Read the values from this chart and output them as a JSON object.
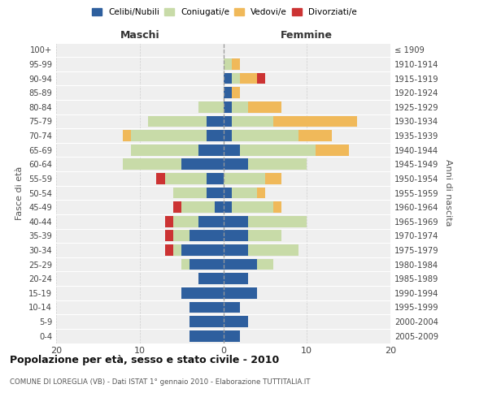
{
  "age_groups": [
    "0-4",
    "5-9",
    "10-14",
    "15-19",
    "20-24",
    "25-29",
    "30-34",
    "35-39",
    "40-44",
    "45-49",
    "50-54",
    "55-59",
    "60-64",
    "65-69",
    "70-74",
    "75-79",
    "80-84",
    "85-89",
    "90-94",
    "95-99",
    "100+"
  ],
  "birth_years": [
    "2005-2009",
    "2000-2004",
    "1995-1999",
    "1990-1994",
    "1985-1989",
    "1980-1984",
    "1975-1979",
    "1970-1974",
    "1965-1969",
    "1960-1964",
    "1955-1959",
    "1950-1954",
    "1945-1949",
    "1940-1944",
    "1935-1939",
    "1930-1934",
    "1925-1929",
    "1920-1924",
    "1915-1919",
    "1910-1914",
    "≤ 1909"
  ],
  "males_celibe": [
    4,
    4,
    4,
    5,
    3,
    4,
    5,
    4,
    3,
    1,
    2,
    2,
    5,
    3,
    2,
    2,
    0,
    0,
    0,
    0,
    0
  ],
  "males_coniugato": [
    0,
    0,
    0,
    0,
    0,
    1,
    1,
    2,
    3,
    4,
    4,
    5,
    7,
    8,
    9,
    7,
    3,
    0,
    0,
    0,
    0
  ],
  "males_vedovo": [
    0,
    0,
    0,
    0,
    0,
    0,
    0,
    0,
    0,
    0,
    0,
    0,
    0,
    0,
    1,
    0,
    0,
    0,
    0,
    0,
    0
  ],
  "males_divorziato": [
    0,
    0,
    0,
    0,
    0,
    0,
    1,
    1,
    1,
    1,
    0,
    1,
    0,
    0,
    0,
    0,
    0,
    0,
    0,
    0,
    0
  ],
  "females_nubile": [
    2,
    3,
    2,
    4,
    3,
    4,
    3,
    3,
    3,
    1,
    1,
    0,
    3,
    2,
    1,
    1,
    1,
    1,
    1,
    0,
    0
  ],
  "females_coniugata": [
    0,
    0,
    0,
    0,
    0,
    2,
    6,
    4,
    7,
    5,
    3,
    5,
    7,
    9,
    8,
    5,
    2,
    0,
    1,
    1,
    0
  ],
  "females_vedova": [
    0,
    0,
    0,
    0,
    0,
    0,
    0,
    0,
    0,
    1,
    1,
    2,
    0,
    4,
    4,
    10,
    4,
    1,
    2,
    1,
    0
  ],
  "females_divorziata": [
    0,
    0,
    0,
    0,
    0,
    0,
    0,
    0,
    0,
    0,
    0,
    0,
    0,
    0,
    0,
    0,
    0,
    0,
    1,
    0,
    0
  ],
  "color_celibe": "#2e5f9e",
  "color_coniugato": "#c8dba8",
  "color_vedovo": "#f0b95a",
  "color_divorziato": "#cc3333",
  "title": "Popolazione per età, sesso e stato civile - 2010",
  "subtitle": "COMUNE DI LOREGLIA (VB) - Dati ISTAT 1° gennaio 2010 - Elaborazione TUTTITALIA.IT",
  "label_maschi": "Maschi",
  "label_femmine": "Femmine",
  "ylabel_left": "Fasce di età",
  "ylabel_right": "Anni di nascita",
  "legend_labels": [
    "Celibi/Nubili",
    "Coniugati/e",
    "Vedovi/e",
    "Divorziati/e"
  ],
  "xlim": 20,
  "bg_color": "#efefef",
  "grid_color": "#cccccc"
}
